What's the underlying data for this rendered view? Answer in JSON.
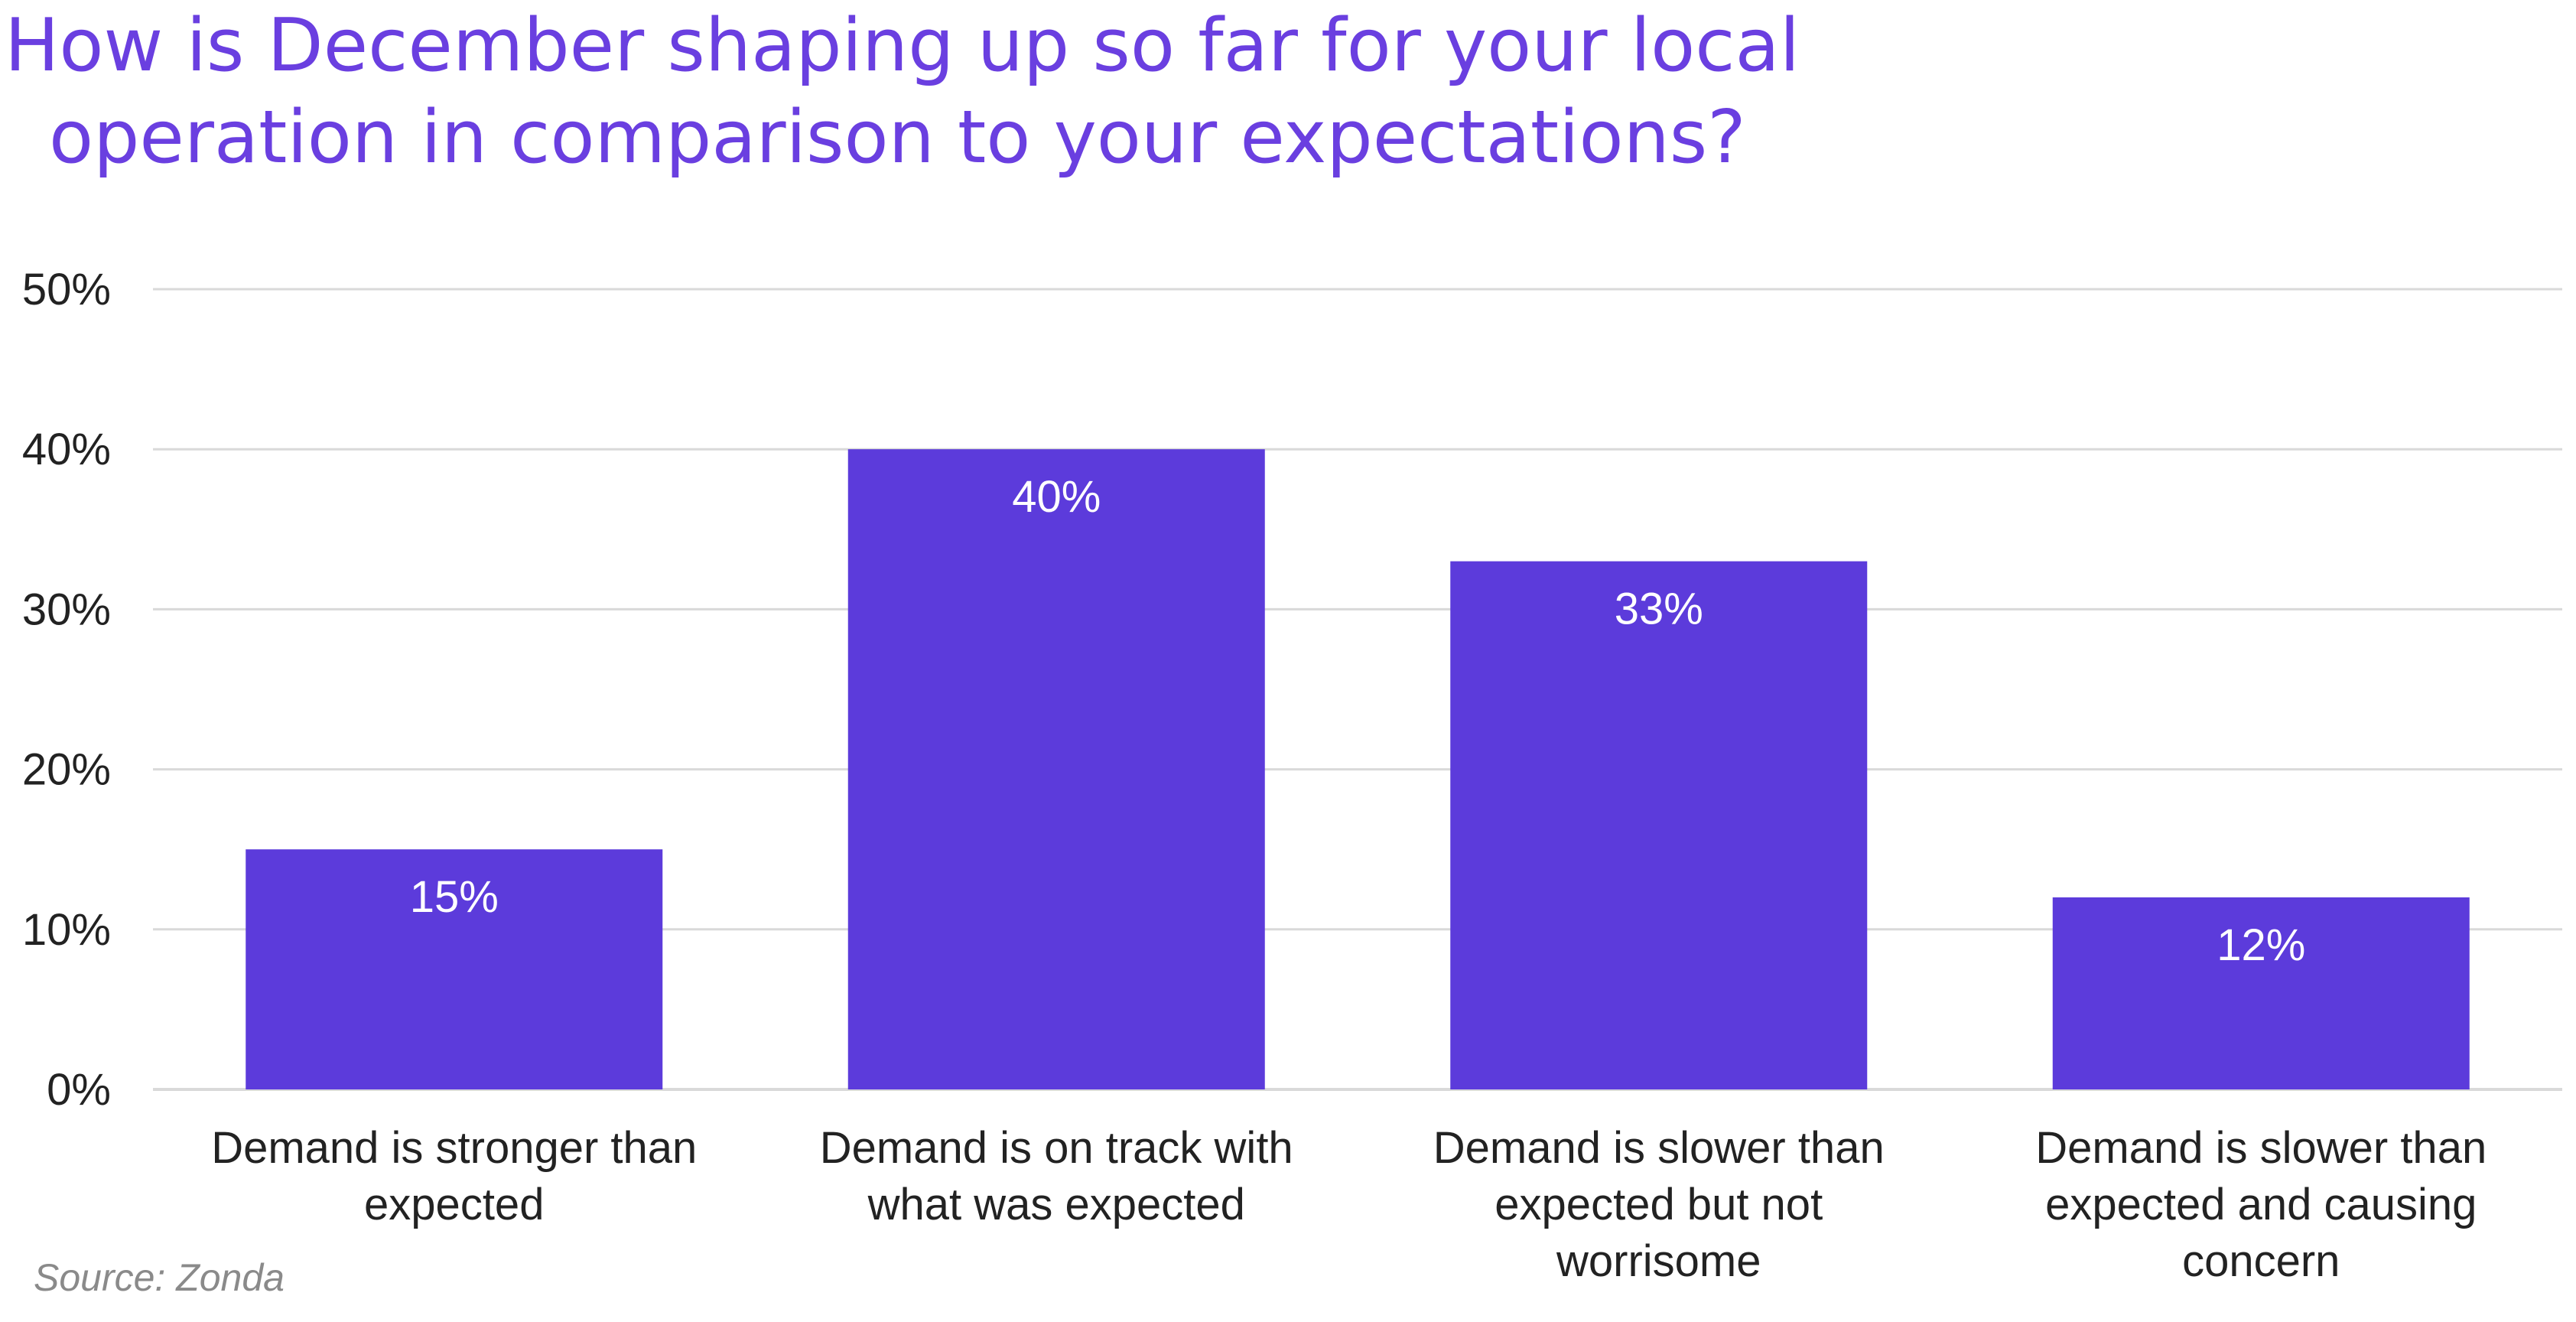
{
  "chart_data": {
    "type": "bar",
    "title_lines": [
      "How is December shaping up so far for your local",
      "operation in comparison to your expectations?"
    ],
    "categories": [
      [
        "Demand is stronger than",
        "expected"
      ],
      [
        "Demand is on track with",
        "what was expected"
      ],
      [
        "Demand is slower than",
        "expected but not",
        "worrisome"
      ],
      [
        "Demand is slower than",
        "expected and causing",
        "concern"
      ]
    ],
    "values": [
      15,
      40,
      33,
      12
    ],
    "data_labels": [
      "15%",
      "40%",
      "33%",
      "12%"
    ],
    "yticks": [
      0,
      10,
      20,
      30,
      40,
      50
    ],
    "ytick_labels": [
      "0%",
      "10%",
      "20%",
      "30%",
      "40%",
      "50%"
    ],
    "ylim": [
      0,
      50
    ],
    "grid": true,
    "legend": "none",
    "bar_color": "#5c3bdb",
    "gridline_color": "#d9d9d9",
    "source": "Source: Zonda"
  }
}
